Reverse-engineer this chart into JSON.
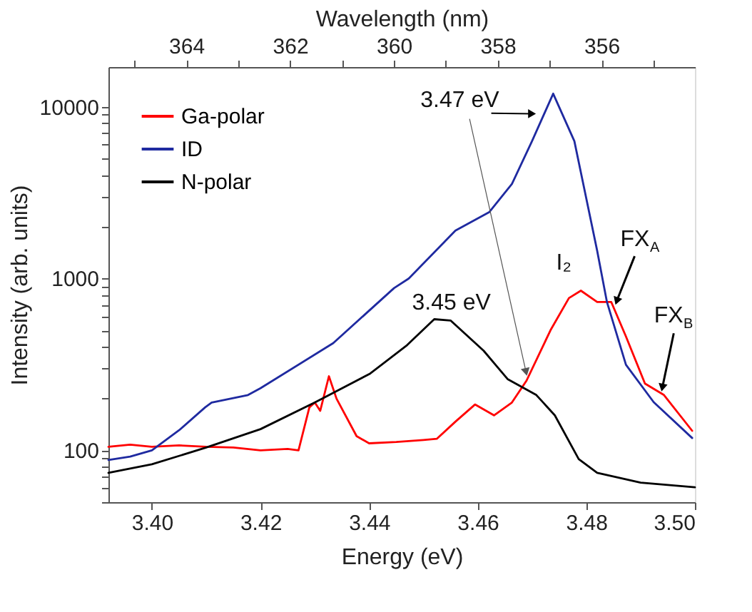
{
  "chart_data": {
    "type": "line",
    "xlabel": "Energy (eV)",
    "ylabel": "Intensity (arb. units)",
    "x2label": "Wavelength (nm)",
    "log": "y",
    "legend": "top left",
    "grid": false,
    "marker": "none",
    "line_style": "solid",
    "xlim": [
      3.392,
      3.5
    ],
    "xticks": [
      {
        "value": 3.4,
        "label": "3.40"
      },
      {
        "value": 3.42,
        "label": "3.42"
      },
      {
        "value": 3.44,
        "label": "3.44"
      },
      {
        "value": 3.46,
        "label": "3.46"
      },
      {
        "value": 3.48,
        "label": "3.48"
      },
      {
        "value": 3.5,
        "label": "3.50"
      }
    ],
    "x2lim": [
      365.5,
      354.2
    ],
    "x2ticks": [
      {
        "value": 365,
        "label": null
      },
      364,
      {
        "value": 363,
        "label": null
      },
      362,
      {
        "value": 361,
        "label": null
      },
      360,
      {
        "value": 359,
        "label": null
      },
      358,
      {
        "value": 357,
        "label": null
      },
      356,
      {
        "value": 355,
        "label": null
      }
    ],
    "ylim": [
      50,
      17000
    ],
    "yticks": [
      {
        "value": 50,
        "label": null
      },
      {
        "value": 60,
        "label": null
      },
      {
        "value": 70,
        "label": null
      },
      {
        "value": 80,
        "label": null
      },
      {
        "value": 90,
        "label": null
      },
      100,
      {
        "value": 200,
        "label": null
      },
      {
        "value": 300,
        "label": null
      },
      {
        "value": 400,
        "label": null
      },
      {
        "value": 500,
        "label": null
      },
      {
        "value": 600,
        "label": null
      },
      {
        "value": 700,
        "label": null
      },
      {
        "value": 800,
        "label": null
      },
      {
        "value": 900,
        "label": null
      },
      1000,
      {
        "value": 2000,
        "label": null
      },
      {
        "value": 3000,
        "label": null
      },
      {
        "value": 4000,
        "label": null
      },
      {
        "value": 5000,
        "label": null
      },
      {
        "value": 6000,
        "label": null
      },
      {
        "value": 7000,
        "label": null
      },
      {
        "value": 8000,
        "label": null
      },
      {
        "value": 9000,
        "label": null
      },
      10000
    ],
    "series": [
      {
        "name": "Ga-polar",
        "color": "#ff0000",
        "x": [
          3.392,
          3.396,
          3.4,
          3.405,
          3.41,
          3.415,
          3.42,
          3.425,
          3.427,
          3.429,
          3.43,
          3.431,
          3.4326,
          3.434,
          3.4377,
          3.44,
          3.445,
          3.45,
          3.4525,
          3.4559,
          3.4595,
          3.463,
          3.4663,
          3.469,
          3.4734,
          3.4768,
          3.479,
          3.482,
          3.4846,
          3.4873,
          3.4908,
          3.4943,
          3.4995
        ],
        "values": [
          105,
          108,
          105,
          107,
          105,
          104,
          100,
          102,
          100,
          178,
          190,
          170,
          270,
          200,
          121,
          110,
          112,
          115,
          117,
          147,
          185,
          160,
          190,
          255,
          500,
          770,
          850,
          730,
          730,
          460,
          245,
          210,
          130
        ]
      },
      {
        "name": "ID",
        "color": "#1f2aa0",
        "x": [
          3.392,
          3.396,
          3.4,
          3.405,
          3.4098,
          3.411,
          3.4177,
          3.42,
          3.4334,
          3.4446,
          3.4473,
          3.4559,
          3.4621,
          3.4663,
          3.47,
          3.4739,
          3.4778,
          3.482,
          3.4838,
          3.4873,
          3.4924,
          3.4995
        ],
        "values": [
          88,
          92,
          100,
          131,
          178,
          190,
          210,
          230,
          421,
          880,
          1000,
          1900,
          2430,
          3550,
          6300,
          11900,
          6300,
          1450,
          730,
          315,
          191,
          118
        ]
      },
      {
        "name": "N-polar",
        "color": "#000000",
        "x": [
          3.392,
          3.4,
          3.41,
          3.42,
          3.43,
          3.4402,
          3.447,
          3.452,
          3.455,
          3.4611,
          3.4655,
          3.4708,
          3.4742,
          3.4786,
          3.482,
          3.49,
          3.5
        ],
        "values": [
          74,
          83,
          104,
          133,
          190,
          280,
          410,
          580,
          570,
          380,
          260,
          210,
          160,
          89,
          74,
          65,
          61
        ]
      }
    ],
    "annotations": [
      {
        "text": "3.47 eV",
        "x": 3.47,
        "y": 9100
      },
      {
        "text": "3.45 eV",
        "x": 3.452,
        "y": 580
      },
      {
        "text": "I₂",
        "x": 3.479,
        "y": 850
      },
      {
        "text": "FX$_{A}$",
        "x": 3.4856,
        "y": 740
      },
      {
        "text": "FX$_{B}$",
        "x": 3.494,
        "y": 232
      }
    ]
  }
}
